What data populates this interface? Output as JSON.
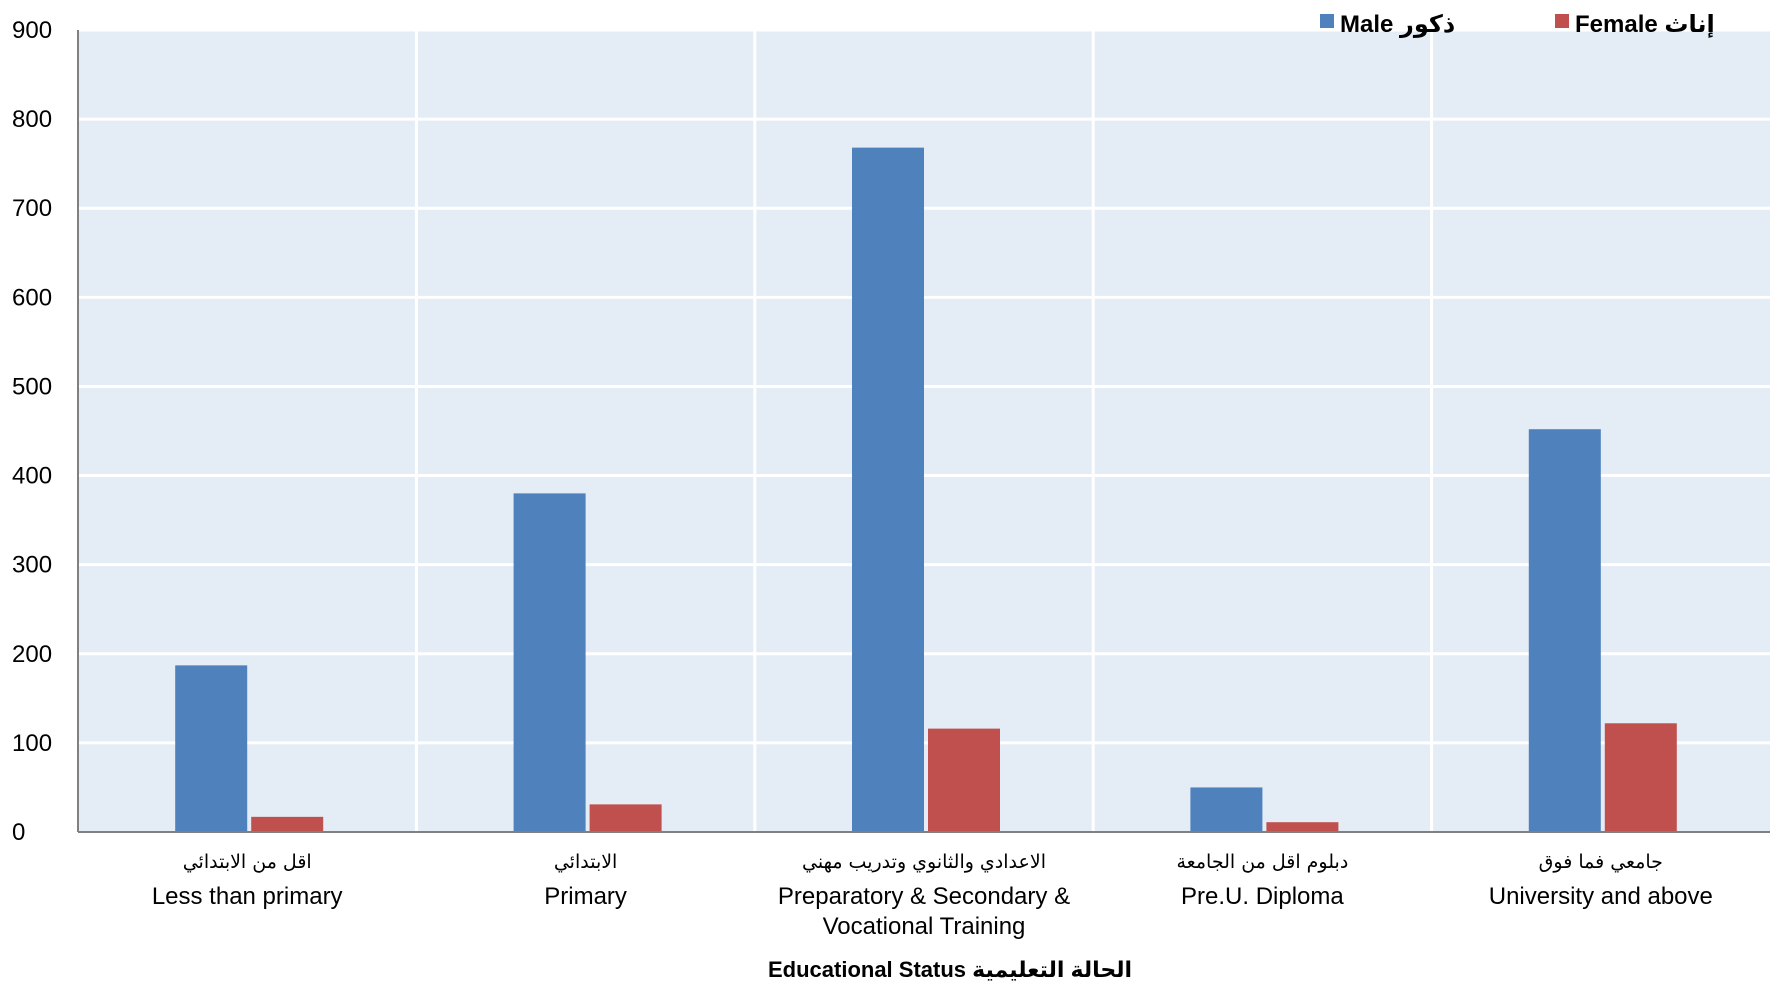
{
  "chart_data": {
    "type": "bar",
    "categories": [
      {
        "ar": "اقل من الابتدائي",
        "en": [
          "Less than primary"
        ]
      },
      {
        "ar": "الابتدائي",
        "en": [
          "Primary"
        ]
      },
      {
        "ar": "الاعدادي والثانوي وتدريب مهني",
        "en": [
          "Preparatory & Secondary &",
          "Vocational Training"
        ]
      },
      {
        "ar": "دبلوم اقل من الجامعة",
        "en": [
          "Pre.U. Diploma"
        ]
      },
      {
        "ar": "جامعي فما فوق",
        "en": [
          "University and above"
        ]
      }
    ],
    "series": [
      {
        "name": "Male ذكور",
        "color": "#4f81bd",
        "values": [
          187,
          380,
          768,
          50,
          452
        ]
      },
      {
        "name": "Female إناث",
        "color": "#c0504d",
        "values": [
          17,
          31,
          116,
          11,
          122
        ]
      }
    ],
    "xlabel": "Educational Status  الحالة التعليمية",
    "ylabel": "",
    "ylim": [
      0,
      900
    ],
    "yticks": [
      0,
      100,
      200,
      300,
      400,
      500,
      600,
      700,
      800,
      900
    ],
    "grid": true,
    "plot_background": "#e4ecf6",
    "legend_position": "top-right"
  }
}
